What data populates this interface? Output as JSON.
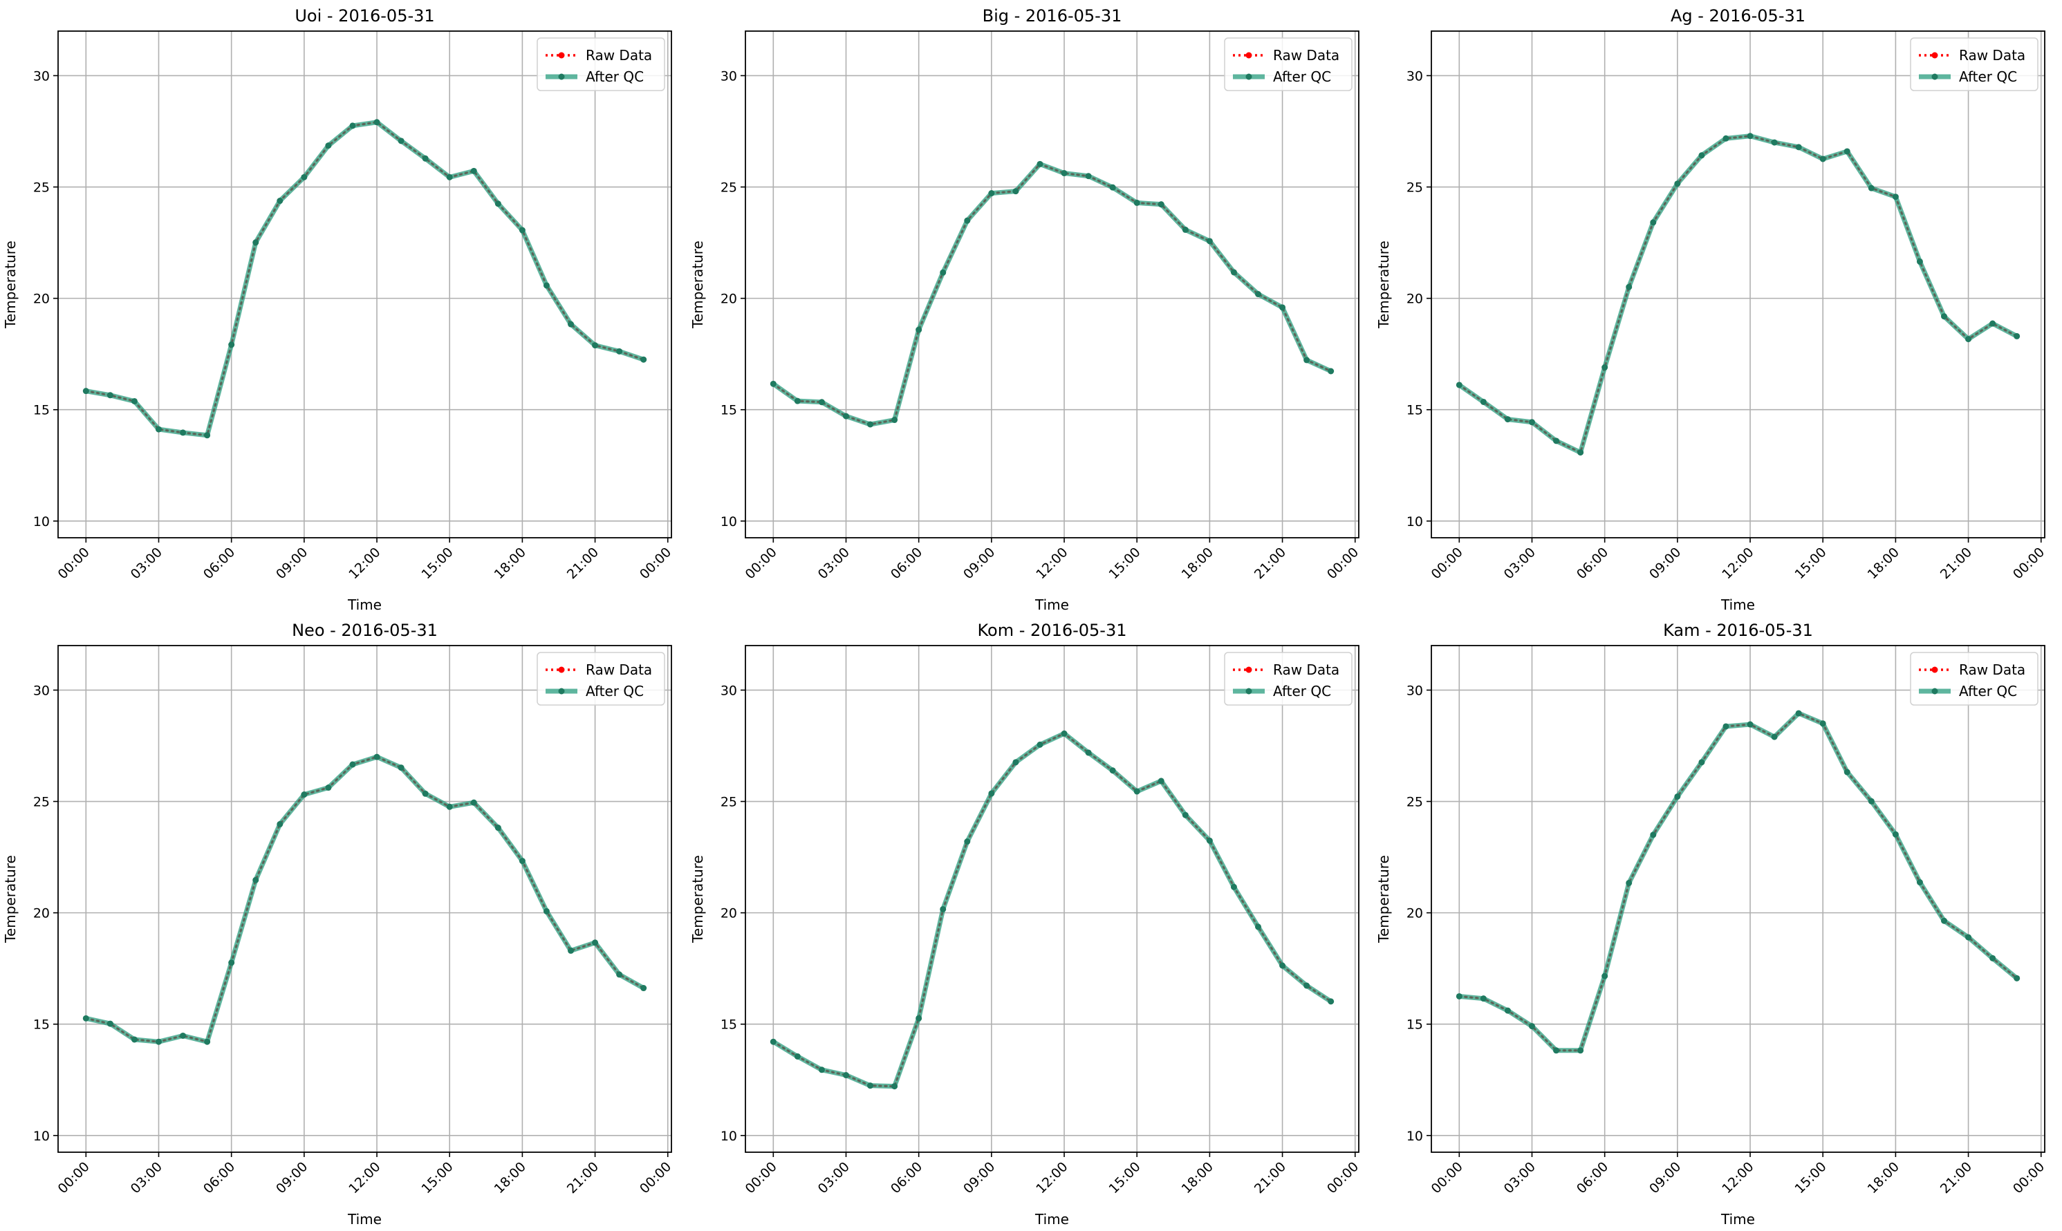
{
  "chart_data": [
    {
      "type": "line",
      "title": "Uoi - 2016-05-31",
      "xlabel": "Time",
      "ylabel": "Temperature",
      "x": [
        "00:00",
        "01:00",
        "02:00",
        "03:00",
        "04:00",
        "05:00",
        "06:00",
        "07:00",
        "08:00",
        "09:00",
        "10:00",
        "11:00",
        "12:00",
        "13:00",
        "14:00",
        "15:00",
        "16:00",
        "17:00",
        "18:00",
        "19:00",
        "20:00",
        "21:00",
        "22:00",
        "23:00"
      ],
      "x_tick_labels": [
        "00:00",
        "03:00",
        "06:00",
        "09:00",
        "12:00",
        "15:00",
        "18:00",
        "21:00",
        "00:00"
      ],
      "y_ticks": [
        10,
        15,
        20,
        25,
        30
      ],
      "ylim": [
        9.25,
        32.0
      ],
      "grid": true,
      "legend": "upper right",
      "series": [
        {
          "name": "Raw Data",
          "color": "#ff0000",
          "values": [
            15.84,
            15.65,
            15.38,
            14.12,
            13.97,
            13.85,
            17.92,
            22.51,
            24.38,
            25.44,
            26.86,
            27.75,
            27.91,
            27.07,
            26.28,
            25.44,
            25.72,
            24.25,
            23.06,
            20.58,
            18.84,
            17.89,
            17.62,
            17.25
          ]
        },
        {
          "name": "After QC",
          "color": "#2a9d7f",
          "values": [
            15.84,
            15.65,
            15.38,
            14.12,
            13.97,
            13.85,
            17.92,
            22.51,
            24.38,
            25.44,
            26.86,
            27.75,
            27.91,
            27.07,
            26.28,
            25.44,
            25.72,
            24.25,
            23.06,
            20.58,
            18.84,
            17.89,
            17.62,
            17.25
          ]
        }
      ]
    },
    {
      "type": "line",
      "title": "Big - 2016-05-31",
      "xlabel": "Time",
      "ylabel": "Temperature",
      "x": [
        "00:00",
        "01:00",
        "02:00",
        "03:00",
        "04:00",
        "05:00",
        "06:00",
        "07:00",
        "08:00",
        "09:00",
        "10:00",
        "11:00",
        "12:00",
        "13:00",
        "14:00",
        "15:00",
        "16:00",
        "17:00",
        "18:00",
        "19:00",
        "20:00",
        "21:00",
        "22:00",
        "23:00"
      ],
      "x_tick_labels": [
        "00:00",
        "03:00",
        "06:00",
        "09:00",
        "12:00",
        "15:00",
        "18:00",
        "21:00",
        "00:00"
      ],
      "y_ticks": [
        10,
        15,
        20,
        25,
        30
      ],
      "ylim": [
        9.25,
        32.0
      ],
      "grid": true,
      "legend": "upper right",
      "series": [
        {
          "name": "Raw Data",
          "color": "#ff0000",
          "values": [
            16.16,
            15.39,
            15.34,
            14.71,
            14.34,
            14.54,
            18.59,
            21.16,
            23.49,
            24.72,
            24.81,
            26.03,
            25.62,
            25.49,
            24.98,
            24.29,
            24.22,
            23.08,
            22.57,
            21.17,
            20.19,
            19.59,
            17.23,
            16.73
          ]
        },
        {
          "name": "After QC",
          "color": "#2a9d7f",
          "values": [
            16.16,
            15.39,
            15.34,
            14.71,
            14.34,
            14.54,
            18.59,
            21.16,
            23.49,
            24.72,
            24.81,
            26.03,
            25.62,
            25.49,
            24.98,
            24.29,
            24.22,
            23.08,
            22.57,
            21.17,
            20.19,
            19.59,
            17.23,
            16.73
          ]
        }
      ]
    },
    {
      "type": "line",
      "title": "Ag - 2016-05-31",
      "xlabel": "Time",
      "ylabel": "Temperature",
      "x": [
        "00:00",
        "01:00",
        "02:00",
        "03:00",
        "04:00",
        "05:00",
        "06:00",
        "07:00",
        "08:00",
        "09:00",
        "10:00",
        "11:00",
        "12:00",
        "13:00",
        "14:00",
        "15:00",
        "16:00",
        "17:00",
        "18:00",
        "19:00",
        "20:00",
        "21:00",
        "22:00",
        "23:00"
      ],
      "x_tick_labels": [
        "00:00",
        "03:00",
        "06:00",
        "09:00",
        "12:00",
        "15:00",
        "18:00",
        "21:00",
        "00:00"
      ],
      "y_ticks": [
        10,
        15,
        20,
        25,
        30
      ],
      "ylim": [
        9.25,
        32.0
      ],
      "grid": true,
      "legend": "upper right",
      "series": [
        {
          "name": "Raw Data",
          "color": "#ff0000",
          "values": [
            16.11,
            15.35,
            14.57,
            14.44,
            13.6,
            13.08,
            16.9,
            20.51,
            23.41,
            25.15,
            26.42,
            27.18,
            27.29,
            27.0,
            26.79,
            26.26,
            26.6,
            24.95,
            24.56,
            21.65,
            19.19,
            18.17,
            18.87,
            18.3
          ]
        },
        {
          "name": "After QC",
          "color": "#2a9d7f",
          "values": [
            16.11,
            15.35,
            14.57,
            14.44,
            13.6,
            13.08,
            16.9,
            20.51,
            23.41,
            25.15,
            26.42,
            27.18,
            27.29,
            27.0,
            26.79,
            26.26,
            26.6,
            24.95,
            24.56,
            21.65,
            19.19,
            18.17,
            18.87,
            18.3
          ]
        }
      ]
    },
    {
      "type": "line",
      "title": "Neo - 2016-05-31",
      "xlabel": "Time",
      "ylabel": "Temperature",
      "x": [
        "00:00",
        "01:00",
        "02:00",
        "03:00",
        "04:00",
        "05:00",
        "06:00",
        "07:00",
        "08:00",
        "09:00",
        "10:00",
        "11:00",
        "12:00",
        "13:00",
        "14:00",
        "15:00",
        "16:00",
        "17:00",
        "18:00",
        "19:00",
        "20:00",
        "21:00",
        "22:00",
        "23:00"
      ],
      "x_tick_labels": [
        "00:00",
        "03:00",
        "06:00",
        "09:00",
        "12:00",
        "15:00",
        "18:00",
        "21:00",
        "00:00"
      ],
      "y_ticks": [
        10,
        15,
        20,
        25,
        30
      ],
      "ylim": [
        9.25,
        32.0
      ],
      "grid": true,
      "legend": "upper right",
      "series": [
        {
          "name": "Raw Data",
          "color": "#ff0000",
          "values": [
            15.26,
            15.02,
            14.31,
            14.21,
            14.48,
            14.21,
            17.76,
            21.47,
            23.98,
            25.31,
            25.62,
            26.66,
            27.0,
            26.52,
            25.35,
            24.76,
            24.95,
            23.82,
            22.33,
            20.07,
            18.3,
            18.66,
            17.23,
            16.62
          ]
        },
        {
          "name": "After QC",
          "color": "#2a9d7f",
          "values": [
            15.26,
            15.02,
            14.31,
            14.21,
            14.48,
            14.21,
            17.76,
            21.47,
            23.98,
            25.31,
            25.62,
            26.66,
            27.0,
            26.52,
            25.35,
            24.76,
            24.95,
            23.82,
            22.33,
            20.07,
            18.3,
            18.66,
            17.23,
            16.62
          ]
        }
      ]
    },
    {
      "type": "line",
      "title": "Kom - 2016-05-31",
      "xlabel": "Time",
      "ylabel": "Temperature",
      "x": [
        "00:00",
        "01:00",
        "02:00",
        "03:00",
        "04:00",
        "05:00",
        "06:00",
        "07:00",
        "08:00",
        "09:00",
        "10:00",
        "11:00",
        "12:00",
        "13:00",
        "14:00",
        "15:00",
        "16:00",
        "17:00",
        "18:00",
        "19:00",
        "20:00",
        "21:00",
        "22:00",
        "23:00"
      ],
      "x_tick_labels": [
        "00:00",
        "03:00",
        "06:00",
        "09:00",
        "12:00",
        "15:00",
        "18:00",
        "21:00",
        "00:00"
      ],
      "y_ticks": [
        10,
        15,
        20,
        25,
        30
      ],
      "ylim": [
        9.25,
        32.0
      ],
      "grid": true,
      "legend": "upper right",
      "series": [
        {
          "name": "Raw Data",
          "color": "#ff0000",
          "values": [
            14.21,
            13.55,
            12.95,
            12.71,
            12.24,
            12.21,
            15.26,
            20.16,
            23.2,
            25.36,
            26.76,
            27.55,
            28.05,
            27.19,
            26.39,
            25.45,
            25.92,
            24.39,
            23.24,
            21.16,
            19.37,
            17.63,
            16.73,
            16.02
          ]
        },
        {
          "name": "After QC",
          "color": "#2a9d7f",
          "values": [
            14.21,
            13.55,
            12.95,
            12.71,
            12.24,
            12.21,
            15.26,
            20.16,
            23.2,
            25.36,
            26.76,
            27.55,
            28.05,
            27.19,
            26.39,
            25.45,
            25.92,
            24.39,
            23.24,
            21.16,
            19.37,
            17.63,
            16.73,
            16.02
          ]
        }
      ]
    },
    {
      "type": "line",
      "title": "Kam - 2016-05-31",
      "xlabel": "Time",
      "ylabel": "Temperature",
      "x": [
        "00:00",
        "01:00",
        "02:00",
        "03:00",
        "04:00",
        "05:00",
        "06:00",
        "07:00",
        "08:00",
        "09:00",
        "10:00",
        "11:00",
        "12:00",
        "13:00",
        "14:00",
        "15:00",
        "16:00",
        "17:00",
        "18:00",
        "19:00",
        "20:00",
        "21:00",
        "22:00",
        "23:00"
      ],
      "x_tick_labels": [
        "00:00",
        "03:00",
        "06:00",
        "09:00",
        "12:00",
        "15:00",
        "18:00",
        "21:00",
        "00:00"
      ],
      "y_ticks": [
        10,
        15,
        20,
        25,
        30
      ],
      "ylim": [
        9.25,
        32.0
      ],
      "grid": true,
      "legend": "upper right",
      "series": [
        {
          "name": "Raw Data",
          "color": "#ff0000",
          "values": [
            16.25,
            16.15,
            15.61,
            14.91,
            13.82,
            13.82,
            17.16,
            21.34,
            23.5,
            25.22,
            26.76,
            28.37,
            28.46,
            27.9,
            28.96,
            28.5,
            26.32,
            25.01,
            23.52,
            21.37,
            19.64,
            18.9,
            17.96,
            17.06
          ]
        },
        {
          "name": "After QC",
          "color": "#2a9d7f",
          "values": [
            16.25,
            16.15,
            15.61,
            14.91,
            13.82,
            13.82,
            17.16,
            21.34,
            23.5,
            25.22,
            26.76,
            28.37,
            28.46,
            27.9,
            28.96,
            28.5,
            26.32,
            25.01,
            23.52,
            21.37,
            19.64,
            18.9,
            17.96,
            17.06
          ]
        }
      ]
    }
  ]
}
